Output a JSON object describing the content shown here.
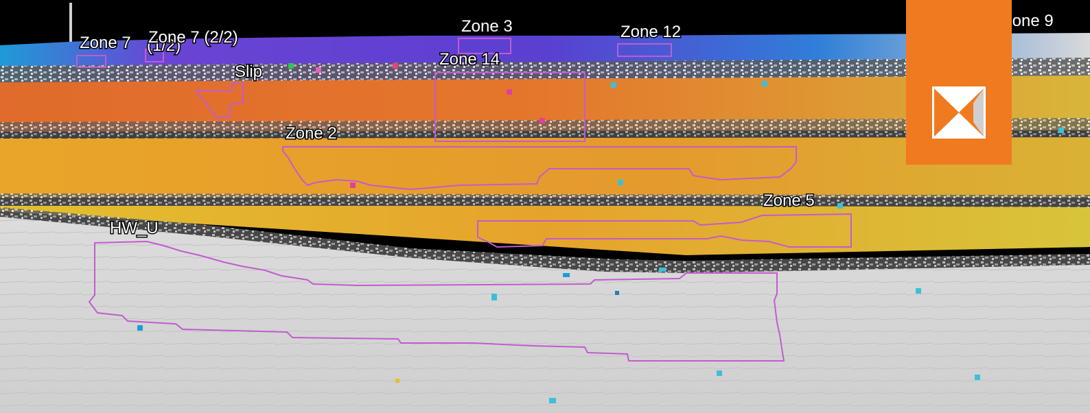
{
  "image": {
    "description_colors": {
      "sky": "#000000",
      "band_purple": "#7a3fd1",
      "band_blue": "#2f7fd8",
      "band_orange": "#e2792a",
      "band_gold": "#e9a52a",
      "band_yellow": "#d8c43a",
      "rock_grey": "#d9d9d9",
      "outline": "#c25bd0",
      "logo_orange": "#f07a1f"
    }
  },
  "zones": {
    "zone7a": "Zone 7",
    "zone7a_suffix": "(1/2)",
    "zone7b": "Zone 7 (2/2)",
    "slip": "Slip",
    "zone3": "Zone 3",
    "zone14": "Zone 14",
    "zone12": "Zone 12",
    "zone9": "Zone 9",
    "zone2": "Zone 2",
    "zone5": "Zone 5",
    "hwu": "HW_U"
  },
  "logo": {
    "icon": "hourglass-logo-icon"
  }
}
